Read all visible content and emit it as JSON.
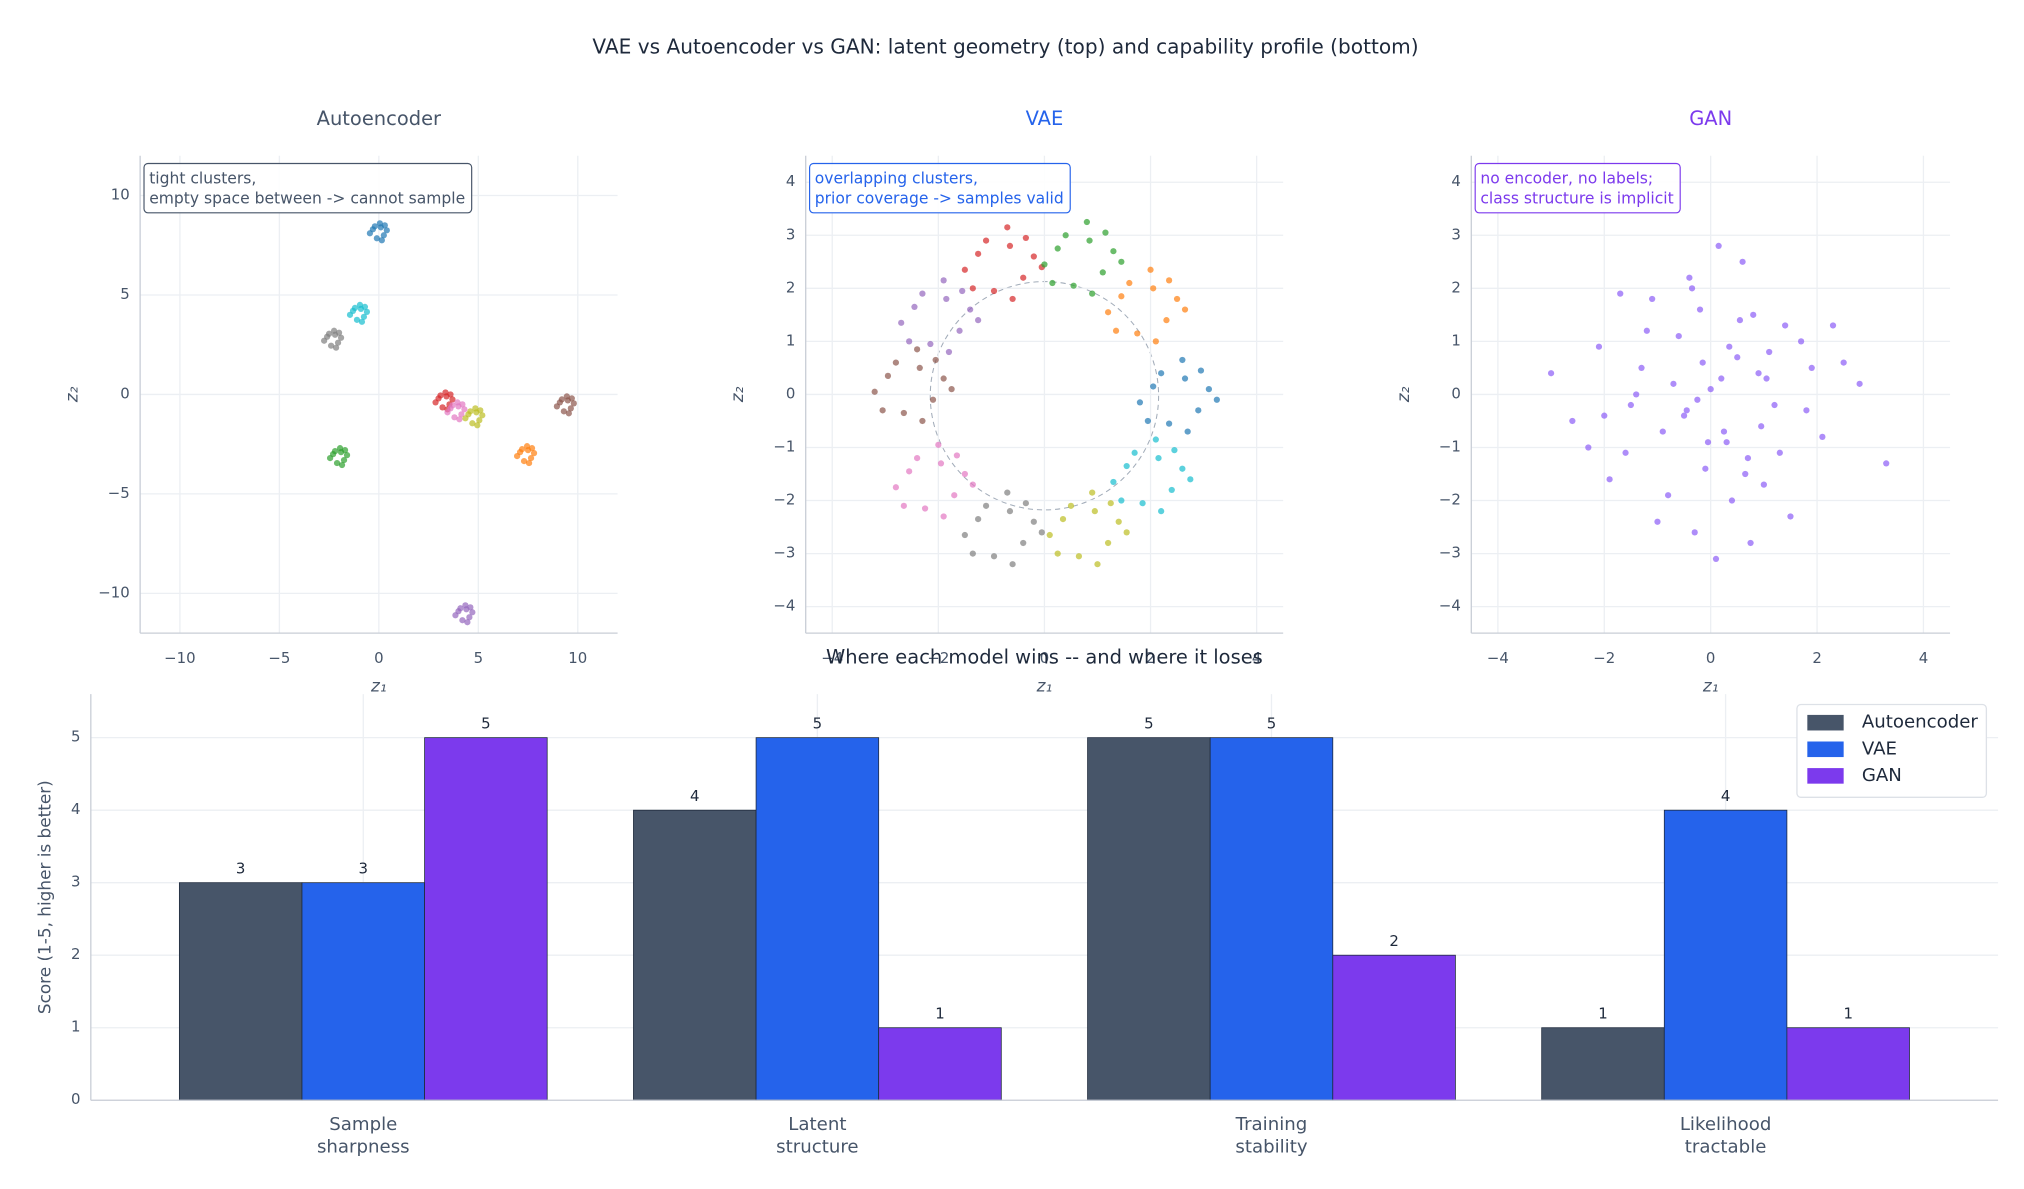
{
  "suptitle": "VAE vs Autoencoder vs GAN: latent geometry (top) and capability profile (bottom)",
  "chart_data": [
    {
      "type": "scatter",
      "title": "Autoencoder",
      "title_color": "#475569",
      "annotation": [
        "tight clusters,",
        "empty space between -> cannot sample"
      ],
      "x_label": "z₁",
      "y_label": "z₂",
      "xlim": [
        -12,
        12
      ],
      "ylim": [
        -12,
        12
      ],
      "xticks": [
        {
          "value": -10,
          "label": "−10"
        },
        {
          "value": -5,
          "label": "−5"
        },
        0,
        5,
        10
      ],
      "yticks": [
        {
          "value": -10,
          "label": "−10"
        },
        {
          "value": -5,
          "label": "−5"
        },
        0,
        5,
        10
      ],
      "grid": true,
      "series": [
        {
          "color": "#1f77b4",
          "x": [
            0.1,
            -0.3,
            0.25,
            -0.1,
            0.4,
            -0.45,
            0.05,
            0.3,
            -0.2,
            0.15
          ],
          "y": [
            8.4,
            8.3,
            8.0,
            7.85,
            8.25,
            8.1,
            8.6,
            8.5,
            8.45,
            7.75
          ]
        },
        {
          "color": "#17becf",
          "x": [
            -0.9,
            -1.3,
            -0.75,
            -1.1,
            -0.6,
            -1.45,
            -0.95,
            -0.7,
            -1.2,
            -0.85
          ],
          "y": [
            4.3,
            4.2,
            3.9,
            3.75,
            4.15,
            4.0,
            4.5,
            4.4,
            4.35,
            3.65
          ]
        },
        {
          "color": "#7f7f7f",
          "x": [
            -2.2,
            -2.6,
            -2.05,
            -2.4,
            -1.9,
            -2.75,
            -2.25,
            -2.0,
            -2.5,
            -2.15
          ],
          "y": [
            3.0,
            2.9,
            2.6,
            2.45,
            2.85,
            2.7,
            3.2,
            3.1,
            3.05,
            2.35
          ]
        },
        {
          "color": "#d62728",
          "x": [
            3.4,
            3.0,
            3.55,
            3.2,
            3.7,
            2.85,
            3.35,
            3.6,
            3.1,
            3.45
          ],
          "y": [
            -0.1,
            -0.2,
            -0.5,
            -0.65,
            -0.25,
            -0.4,
            0.1,
            0.0,
            -0.05,
            -0.75
          ]
        },
        {
          "color": "#e377c2",
          "x": [
            4.0,
            3.6,
            4.15,
            3.8,
            4.3,
            3.45,
            3.95,
            4.2,
            3.7,
            4.05
          ],
          "y": [
            -0.6,
            -0.7,
            -1.0,
            -1.15,
            -0.75,
            -0.9,
            -0.4,
            -0.5,
            -0.55,
            -1.25
          ]
        },
        {
          "color": "#bcbd22",
          "x": [
            4.9,
            4.5,
            5.05,
            4.7,
            5.2,
            4.35,
            4.85,
            5.1,
            4.6,
            4.95
          ],
          "y": [
            -0.9,
            -1.0,
            -1.3,
            -1.45,
            -1.05,
            -1.2,
            -0.7,
            -0.8,
            -0.85,
            -1.55
          ]
        },
        {
          "color": "#8c564b",
          "x": [
            9.5,
            9.1,
            9.65,
            9.3,
            9.8,
            8.95,
            9.45,
            9.7,
            9.2,
            9.55
          ],
          "y": [
            -0.3,
            -0.4,
            -0.7,
            -0.85,
            -0.45,
            -0.6,
            -0.1,
            -0.2,
            -0.25,
            -0.95
          ]
        },
        {
          "color": "#ff7f0e",
          "x": [
            7.5,
            7.1,
            7.65,
            7.3,
            7.8,
            6.95,
            7.45,
            7.7,
            7.2,
            7.55
          ],
          "y": [
            -2.8,
            -2.9,
            -3.2,
            -3.35,
            -2.95,
            -3.1,
            -2.6,
            -2.7,
            -2.75,
            -3.45
          ]
        },
        {
          "color": "#2ca02c",
          "x": [
            -1.9,
            -2.3,
            -1.75,
            -2.1,
            -1.6,
            -2.45,
            -1.95,
            -1.7,
            -2.2,
            -1.85
          ],
          "y": [
            -2.9,
            -3.0,
            -3.3,
            -3.45,
            -3.05,
            -3.2,
            -2.7,
            -2.8,
            -2.85,
            -3.55
          ]
        },
        {
          "color": "#9467bd",
          "x": [
            4.4,
            4.0,
            4.55,
            4.2,
            4.7,
            3.85,
            4.35,
            4.6,
            4.1,
            4.45
          ],
          "y": [
            -10.8,
            -10.9,
            -11.2,
            -11.35,
            -10.95,
            -11.1,
            -10.6,
            -10.7,
            -10.75,
            -11.45
          ]
        }
      ]
    },
    {
      "type": "scatter",
      "title": "VAE",
      "title_color": "#2563eb",
      "annotation": [
        "overlapping clusters,",
        "prior coverage -> samples valid"
      ],
      "x_label": "z₁",
      "y_label": "z₂",
      "xlim": [
        -4.5,
        4.5
      ],
      "ylim": [
        -4.5,
        4.5
      ],
      "xticks": [
        {
          "value": -4,
          "label": "−4"
        },
        {
          "value": -2,
          "label": "−2"
        },
        0,
        2,
        4
      ],
      "yticks": [
        {
          "value": -4,
          "label": "−4"
        },
        {
          "value": -3,
          "label": "−3"
        },
        {
          "value": -2,
          "label": "−2"
        },
        {
          "value": -1,
          "label": "−1"
        },
        0,
        1,
        2,
        3,
        4
      ],
      "grid": true,
      "series": [
        {
          "color": "#d62728",
          "x": [
            -0.65,
            -1.25,
            -0.4,
            -0.95,
            -0.2,
            -1.5,
            -0.7,
            -0.35,
            -1.1,
            -0.6,
            -1.35,
            -0.05
          ],
          "y": [
            2.8,
            2.65,
            2.2,
            1.95,
            2.6,
            2.35,
            3.15,
            2.95,
            2.9,
            1.8,
            2.0,
            2.4
          ]
        },
        {
          "color": "#2ca02c",
          "x": [
            0.85,
            0.25,
            1.1,
            0.55,
            1.3,
            0.0,
            0.8,
            1.15,
            0.4,
            0.9,
            0.15,
            1.45
          ],
          "y": [
            2.9,
            2.75,
            2.3,
            2.05,
            2.7,
            2.45,
            3.25,
            3.05,
            3.0,
            1.9,
            2.1,
            2.5
          ]
        },
        {
          "color": "#ff7f0e",
          "x": [
            2.05,
            1.45,
            2.3,
            1.75,
            2.5,
            1.2,
            2.0,
            2.35,
            1.6,
            2.1,
            1.35,
            2.65
          ],
          "y": [
            2.0,
            1.85,
            1.4,
            1.15,
            1.8,
            1.55,
            2.35,
            2.15,
            2.1,
            1.0,
            1.2,
            1.6
          ]
        },
        {
          "color": "#1f77b4",
          "x": [
            2.65,
            2.05,
            2.9,
            2.35,
            3.1,
            1.8,
            2.6,
            2.95,
            2.2,
            2.7,
            1.95,
            3.25
          ],
          "y": [
            0.3,
            0.15,
            -0.3,
            -0.55,
            0.1,
            -0.15,
            0.65,
            0.45,
            0.4,
            -0.7,
            -0.5,
            -0.1
          ]
        },
        {
          "color": "#17becf",
          "x": [
            2.15,
            1.55,
            2.4,
            1.85,
            2.6,
            1.3,
            2.1,
            2.45,
            1.7,
            2.2,
            1.45,
            2.75
          ],
          "y": [
            -1.2,
            -1.35,
            -1.8,
            -2.05,
            -1.4,
            -1.65,
            -0.85,
            -1.05,
            -1.1,
            -2.2,
            -2.0,
            -1.6
          ]
        },
        {
          "color": "#bcbd22",
          "x": [
            0.95,
            0.35,
            1.2,
            0.65,
            1.4,
            0.1,
            0.9,
            1.25,
            0.5,
            1.0,
            0.25,
            1.55
          ],
          "y": [
            -2.2,
            -2.35,
            -2.8,
            -3.05,
            -2.4,
            -2.65,
            -1.85,
            -2.05,
            -2.1,
            -3.2,
            -3.0,
            -2.6
          ]
        },
        {
          "color": "#7f7f7f",
          "x": [
            -0.65,
            -1.25,
            -0.4,
            -0.95,
            -0.2,
            -1.5,
            -0.7,
            -0.35,
            -1.1,
            -0.6,
            -1.35,
            -0.05
          ],
          "y": [
            -2.2,
            -2.35,
            -2.8,
            -3.05,
            -2.4,
            -2.65,
            -1.85,
            -2.05,
            -2.1,
            -3.2,
            -3.0,
            -2.6
          ]
        },
        {
          "color": "#e377c2",
          "x": [
            -1.95,
            -2.55,
            -1.7,
            -2.25,
            -1.5,
            -2.8,
            -2.0,
            -1.65,
            -2.4,
            -1.9,
            -2.65,
            -1.35
          ],
          "y": [
            -1.3,
            -1.45,
            -1.9,
            -2.15,
            -1.5,
            -1.75,
            -0.95,
            -1.15,
            -1.2,
            -2.3,
            -2.1,
            -1.7
          ]
        },
        {
          "color": "#8c564b",
          "x": [
            -2.35,
            -2.95,
            -2.1,
            -2.65,
            -1.9,
            -3.2,
            -2.4,
            -2.05,
            -2.8,
            -2.3,
            -3.05,
            -1.75
          ],
          "y": [
            0.5,
            0.35,
            -0.1,
            -0.35,
            0.3,
            0.05,
            0.85,
            0.65,
            0.6,
            -0.5,
            -0.3,
            0.1
          ]
        },
        {
          "color": "#9467bd",
          "x": [
            -1.85,
            -2.45,
            -1.6,
            -2.15,
            -1.4,
            -2.7,
            -1.9,
            -1.55,
            -2.3,
            -1.8,
            -2.55,
            -1.25
          ],
          "y": [
            1.8,
            1.65,
            1.2,
            0.95,
            1.6,
            1.35,
            2.15,
            1.95,
            1.9,
            0.8,
            1.0,
            1.4
          ]
        }
      ]
    },
    {
      "type": "scatter",
      "title": "GAN",
      "title_color": "#7c3aed",
      "annotation": [
        "no encoder, no labels;",
        "class structure is implicit"
      ],
      "x_label": "z₁",
      "y_label": "z₂",
      "xlim": [
        -4.5,
        4.5
      ],
      "ylim": [
        -4.5,
        4.5
      ],
      "xticks": [
        {
          "value": -4,
          "label": "−4"
        },
        {
          "value": -2,
          "label": "−2"
        },
        0,
        2,
        4
      ],
      "yticks": [
        {
          "value": -4,
          "label": "−4"
        },
        {
          "value": -3,
          "label": "−3"
        },
        {
          "value": -2,
          "label": "−2"
        },
        {
          "value": -1,
          "label": "−1"
        },
        0,
        1,
        2,
        3,
        4
      ],
      "grid": true,
      "series": [
        {
          "color": "#8b5cf6",
          "x": [
            0.2,
            -0.5,
            1.1,
            -1.3,
            0.7,
            -0.2,
            1.8,
            -2.1,
            0.4,
            -0.9,
            0.0,
            1.4,
            -1.6,
            0.9,
            -0.4,
            2.5,
            -2.6,
            0.3,
            -1.1,
            1.0,
            -0.7,
            0.6,
            -0.1,
            1.7,
            -1.9,
            0.5,
            -0.3,
            1.2,
            -1.4,
            0.8,
            3.3,
            -3.0,
            0.1,
            -0.6,
            2.1,
            -0.8,
            1.5,
            -1.2,
            0.35,
            -0.25,
            2.8,
            -2.3,
            0.95,
            -1.7,
            0.15,
            1.9,
            -0.45,
            0.65,
            -1.0,
            1.3,
            -0.15,
            0.55,
            -2.0,
            2.3,
            -0.05,
            -1.5,
            1.05,
            0.25,
            -0.35,
            0.75
          ],
          "y": [
            0.3,
            -0.4,
            0.8,
            0.5,
            -1.2,
            1.6,
            -0.3,
            0.9,
            -2.0,
            -0.7,
            0.1,
            1.3,
            -1.1,
            0.4,
            2.2,
            0.6,
            -0.5,
            -0.9,
            1.8,
            -1.7,
            0.2,
            2.5,
            -1.4,
            1.0,
            -1.6,
            0.7,
            -2.6,
            -0.2,
            0.0,
            1.5,
            -1.3,
            0.4,
            -3.1,
            1.1,
            -0.8,
            -1.9,
            -2.3,
            1.2,
            0.9,
            -0.1,
            0.2,
            -1.0,
            -0.6,
            1.9,
            2.8,
            0.5,
            -0.3,
            -1.5,
            -2.4,
            -1.1,
            0.6,
            1.4,
            -0.4,
            1.3,
            -0.9,
            -0.2,
            0.3,
            -0.7,
            2.0,
            -2.8
          ]
        }
      ]
    },
    {
      "type": "bar",
      "title": "Where each model wins -- and where it loses",
      "y_label": "Score (1-5, higher is better)",
      "categories": [
        "Sample\nsharpness",
        "Latent\nstructure",
        "Training\nstability",
        "Likelihood\ntractable"
      ],
      "ylim": [
        0,
        5.6
      ],
      "yticks": [
        0,
        1,
        2,
        3,
        4,
        5
      ],
      "grid": true,
      "legend": "upper right",
      "series": [
        {
          "name": "Autoencoder",
          "color": "#475569",
          "values": [
            3,
            4,
            5,
            1
          ]
        },
        {
          "name": "VAE",
          "color": "#2563eb",
          "values": [
            3,
            5,
            5,
            4
          ]
        },
        {
          "name": "GAN",
          "color": "#7c3aed",
          "values": [
            5,
            1,
            2,
            1
          ]
        }
      ]
    }
  ]
}
